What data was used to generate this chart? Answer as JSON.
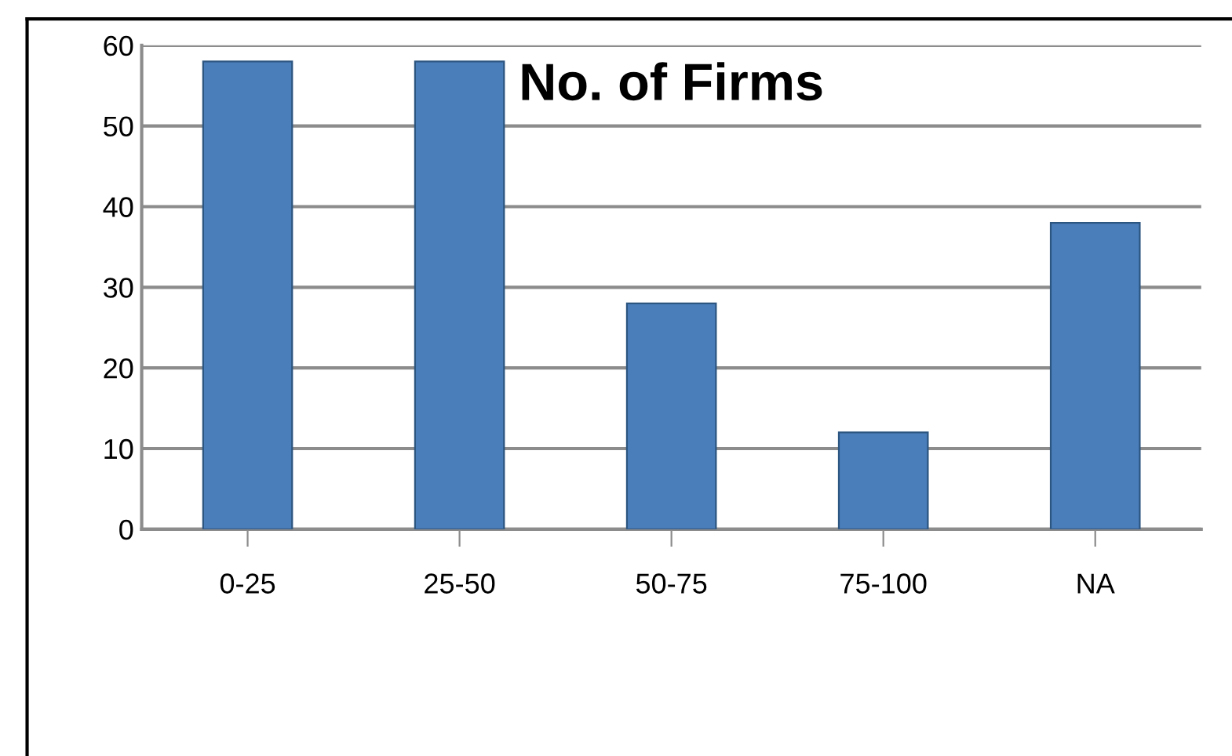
{
  "chart_data": {
    "type": "bar",
    "title": "No. of Firms",
    "categories": [
      "0-25",
      "25-50",
      "50-75",
      "75-100",
      "NA"
    ],
    "values": [
      58,
      58,
      28,
      12,
      38
    ],
    "color": "#4a7ebb",
    "ylim": [
      0,
      60
    ],
    "yticks": [
      0,
      10,
      20,
      30,
      40,
      50,
      60
    ],
    "grid": "y"
  }
}
